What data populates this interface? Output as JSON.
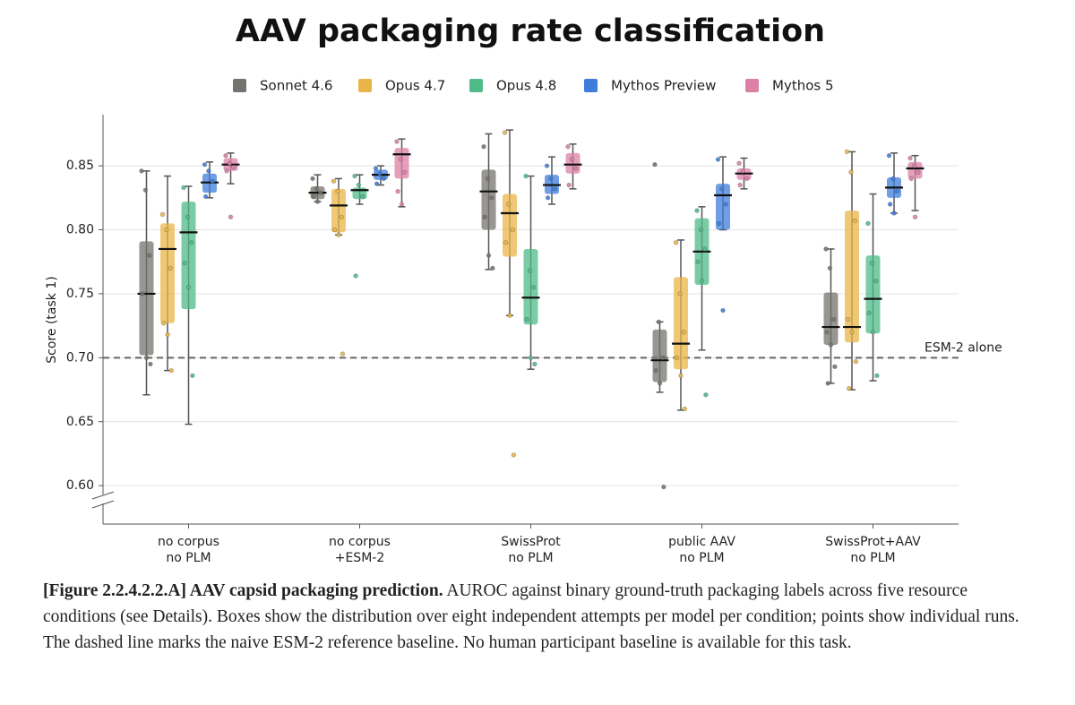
{
  "chart_data": {
    "type": "box",
    "title": "AAV packaging rate classification",
    "y_label": "Score (task 1)",
    "categories": [
      [
        "no corpus",
        "no PLM"
      ],
      [
        "no corpus",
        "+ESM-2"
      ],
      [
        "SwissProt",
        "no PLM"
      ],
      [
        "public AAV",
        "no PLM"
      ],
      [
        "SwissProt+AAV",
        "no PLM"
      ]
    ],
    "ylim": [
      0.57,
      0.89
    ],
    "yticks": [
      {
        "value": 0.6,
        "label": "0.60"
      },
      0.65,
      {
        "value": 0.7,
        "label": "0.70"
      },
      0.75,
      {
        "value": 0.8,
        "label": "0.80"
      },
      0.85
    ],
    "grid": true,
    "legend": "top",
    "reference_line": {
      "value": 0.7,
      "label": "ESM-2 alone"
    },
    "series": [
      {
        "name": "Sonnet 4.6",
        "color": "#75736d",
        "values": [
          {
            "low": 0.671,
            "q1": 0.702,
            "median": 0.75,
            "q3": 0.791,
            "high": 0.846,
            "points": [
              0.846,
              0.831,
              0.78,
              0.75,
              0.7,
              0.695
            ]
          },
          {
            "low": 0.822,
            "q1": 0.824,
            "median": 0.829,
            "q3": 0.834,
            "high": 0.843,
            "points": [
              0.84,
              0.832,
              0.829,
              0.826,
              0.822
            ]
          },
          {
            "low": 0.769,
            "q1": 0.8,
            "median": 0.83,
            "q3": 0.847,
            "high": 0.875,
            "points": [
              0.865,
              0.84,
              0.825,
              0.81,
              0.78,
              0.77
            ]
          },
          {
            "low": 0.673,
            "q1": 0.681,
            "median": 0.698,
            "q3": 0.722,
            "high": 0.728,
            "points": [
              0.851,
              0.728,
              0.7,
              0.69,
              0.68,
              0.599
            ]
          },
          {
            "low": 0.68,
            "q1": 0.71,
            "median": 0.724,
            "q3": 0.751,
            "high": 0.785,
            "points": [
              0.785,
              0.77,
              0.73,
              0.72,
              0.71,
              0.693,
              0.68
            ]
          }
        ]
      },
      {
        "name": "Opus 4.7",
        "color": "#e9b548",
        "values": [
          {
            "low": 0.69,
            "q1": 0.727,
            "median": 0.785,
            "q3": 0.805,
            "high": 0.842,
            "points": [
              0.812,
              0.8,
              0.77,
              0.727,
              0.718,
              0.69
            ]
          },
          {
            "low": 0.796,
            "q1": 0.798,
            "median": 0.819,
            "q3": 0.832,
            "high": 0.84,
            "points": [
              0.838,
              0.83,
              0.81,
              0.8,
              0.796,
              0.703
            ]
          },
          {
            "low": 0.733,
            "q1": 0.779,
            "median": 0.813,
            "q3": 0.828,
            "high": 0.878,
            "points": [
              0.876,
              0.82,
              0.8,
              0.79,
              0.733,
              0.624
            ]
          },
          {
            "low": 0.659,
            "q1": 0.691,
            "median": 0.711,
            "q3": 0.763,
            "high": 0.792,
            "points": [
              0.79,
              0.75,
              0.72,
              0.7,
              0.686,
              0.66
            ]
          },
          {
            "low": 0.675,
            "q1": 0.712,
            "median": 0.724,
            "q3": 0.815,
            "high": 0.861,
            "points": [
              0.861,
              0.845,
              0.807,
              0.73,
              0.72,
              0.697,
              0.676
            ]
          }
        ]
      },
      {
        "name": "Opus 4.8",
        "color": "#4fbb88",
        "values": [
          {
            "low": 0.648,
            "q1": 0.738,
            "median": 0.798,
            "q3": 0.822,
            "high": 0.834,
            "points": [
              0.833,
              0.81,
              0.79,
              0.774,
              0.755,
              0.686
            ]
          },
          {
            "low": 0.82,
            "q1": 0.824,
            "median": 0.831,
            "q3": 0.833,
            "high": 0.843,
            "points": [
              0.842,
              0.835,
              0.826,
              0.764
            ]
          },
          {
            "low": 0.691,
            "q1": 0.726,
            "median": 0.747,
            "q3": 0.785,
            "high": 0.842,
            "points": [
              0.842,
              0.768,
              0.755,
              0.73,
              0.7,
              0.695
            ]
          },
          {
            "low": 0.706,
            "q1": 0.757,
            "median": 0.783,
            "q3": 0.809,
            "high": 0.818,
            "points": [
              0.815,
              0.8,
              0.785,
              0.775,
              0.76,
              0.671
            ]
          },
          {
            "low": 0.682,
            "q1": 0.719,
            "median": 0.746,
            "q3": 0.78,
            "high": 0.828,
            "points": [
              0.805,
              0.774,
              0.76,
              0.735,
              0.72,
              0.686
            ]
          }
        ]
      },
      {
        "name": "Mythos Preview",
        "color": "#3f7ddb",
        "values": [
          {
            "low": 0.825,
            "q1": 0.829,
            "median": 0.837,
            "q3": 0.844,
            "high": 0.853,
            "points": [
              0.851,
              0.846,
              0.838,
              0.826
            ]
          },
          {
            "low": 0.835,
            "q1": 0.839,
            "median": 0.843,
            "q3": 0.847,
            "high": 0.85,
            "points": [
              0.848,
              0.844,
              0.84,
              0.836
            ]
          },
          {
            "low": 0.82,
            "q1": 0.828,
            "median": 0.835,
            "q3": 0.843,
            "high": 0.857,
            "points": [
              0.85,
              0.84,
              0.832,
              0.825
            ]
          },
          {
            "low": 0.8,
            "q1": 0.8,
            "median": 0.827,
            "q3": 0.836,
            "high": 0.857,
            "points": [
              0.855,
              0.832,
              0.82,
              0.805,
              0.737
            ]
          },
          {
            "low": 0.813,
            "q1": 0.825,
            "median": 0.833,
            "q3": 0.841,
            "high": 0.86,
            "points": [
              0.858,
              0.84,
              0.83,
              0.82,
              0.813
            ]
          }
        ]
      },
      {
        "name": "Mythos 5",
        "color": "#dc80a6",
        "values": [
          {
            "low": 0.836,
            "q1": 0.846,
            "median": 0.851,
            "q3": 0.856,
            "high": 0.86,
            "points": [
              0.858,
              0.852,
              0.849,
              0.846,
              0.81
            ]
          },
          {
            "low": 0.818,
            "q1": 0.84,
            "median": 0.859,
            "q3": 0.864,
            "high": 0.871,
            "points": [
              0.869,
              0.855,
              0.845,
              0.83,
              0.82
            ]
          },
          {
            "low": 0.832,
            "q1": 0.844,
            "median": 0.851,
            "q3": 0.86,
            "high": 0.867,
            "points": [
              0.865,
              0.855,
              0.848,
              0.835
            ]
          },
          {
            "low": 0.832,
            "q1": 0.839,
            "median": 0.844,
            "q3": 0.848,
            "high": 0.856,
            "points": [
              0.852,
              0.846,
              0.84,
              0.835
            ]
          },
          {
            "low": 0.815,
            "q1": 0.84,
            "median": 0.848,
            "q3": 0.853,
            "high": 0.858,
            "points": [
              0.856,
              0.85,
              0.845,
              0.84,
              0.81
            ]
          }
        ]
      }
    ]
  },
  "caption": {
    "label": "[Figure 2.2.4.2.2.A] AAV capsid packaging prediction.",
    "text": "AUROC against binary ground-truth packaging labels across five resource conditions (see Details). Boxes show the distribution over eight independent attempts per model per condition; points show individual runs. The dashed line marks the naive ESM-2 reference baseline. No human participant baseline is available for this task."
  }
}
